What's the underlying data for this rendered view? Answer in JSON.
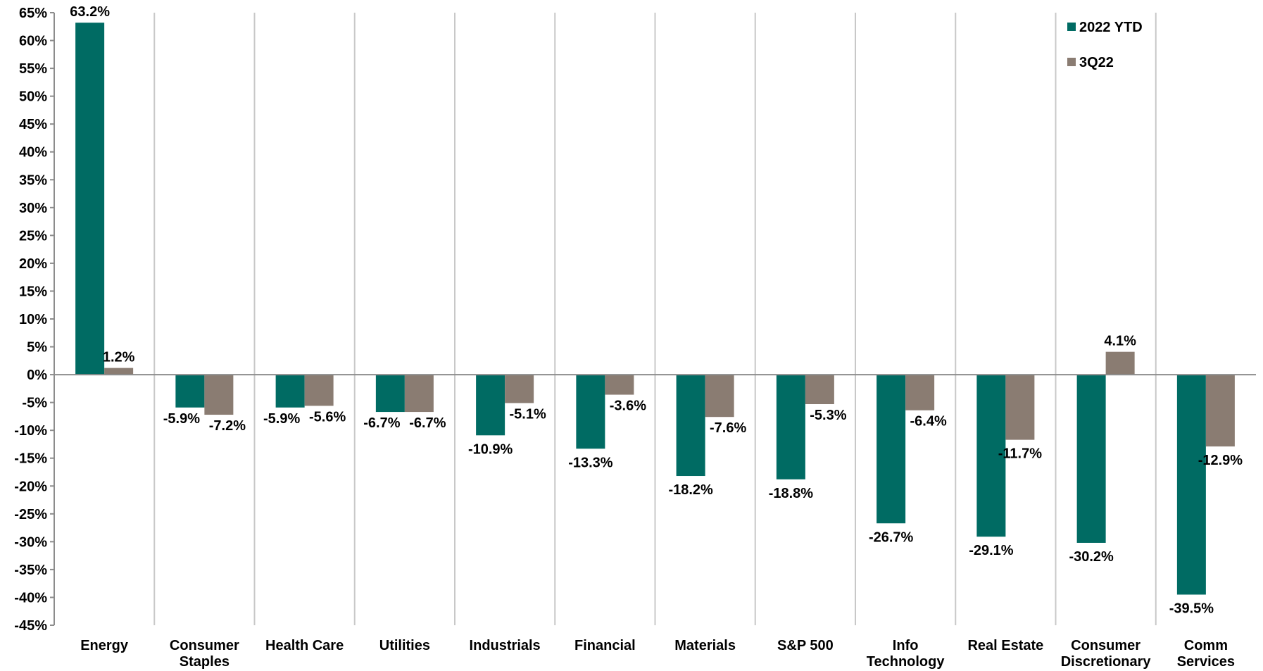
{
  "chart_data": {
    "type": "bar",
    "categories": [
      [
        "Energy"
      ],
      [
        "Consumer",
        "Staples"
      ],
      [
        "Health Care"
      ],
      [
        "Utilities"
      ],
      [
        "Industrials"
      ],
      [
        "Financial"
      ],
      [
        "Materials"
      ],
      [
        "S&P 500"
      ],
      [
        "Info",
        "Technology"
      ],
      [
        "Real Estate"
      ],
      [
        "Consumer",
        "Discretionary"
      ],
      [
        "Comm",
        "Services"
      ]
    ],
    "series": [
      {
        "name": "2022 YTD",
        "color": "#006b63",
        "values": [
          63.2,
          -5.9,
          -5.9,
          -6.7,
          -10.9,
          -13.3,
          -18.2,
          -18.8,
          -26.7,
          -29.1,
          -30.2,
          -39.5
        ],
        "labels": [
          "63.2%",
          "-5.9%",
          "-5.9%",
          "-6.7%",
          "-10.9%",
          "-13.3%",
          "-18.2%",
          "-18.8%",
          "-26.7%",
          "-29.1%",
          "-30.2%",
          "-39.5%"
        ]
      },
      {
        "name": "3Q22",
        "color": "#8a7c72",
        "values": [
          1.2,
          -7.2,
          -5.6,
          -6.7,
          -5.1,
          -3.6,
          -7.6,
          -5.3,
          -6.4,
          -11.7,
          4.1,
          -12.9
        ],
        "labels": [
          "1.2%",
          "-7.2%",
          "-5.6%",
          "-6.7%",
          "-5.1%",
          "-3.6%",
          "-7.6%",
          "-5.3%",
          "-6.4%",
          "-11.7%",
          "4.1%",
          "-12.9%"
        ]
      }
    ],
    "ylim": [
      -45,
      65
    ],
    "yticks": [
      65,
      60,
      55,
      50,
      45,
      40,
      35,
      30,
      25,
      20,
      15,
      10,
      5,
      0,
      -5,
      -10,
      -15,
      -20,
      -25,
      -30,
      -35,
      -40,
      -45
    ],
    "ytick_labels": [
      "65%",
      "60%",
      "55%",
      "50%",
      "45%",
      "40%",
      "35%",
      "30%",
      "25%",
      "20%",
      "15%",
      "10%",
      "5%",
      "0%",
      "-5%",
      "-10%",
      "-15%",
      "-20%",
      "-25%",
      "-30%",
      "-35%",
      "-40%",
      "-45%"
    ],
    "grid": "vertical separators between categories",
    "legend_position": "top-right",
    "axis_color": "#8c8c8c",
    "grid_color": "#c8c8c8"
  }
}
